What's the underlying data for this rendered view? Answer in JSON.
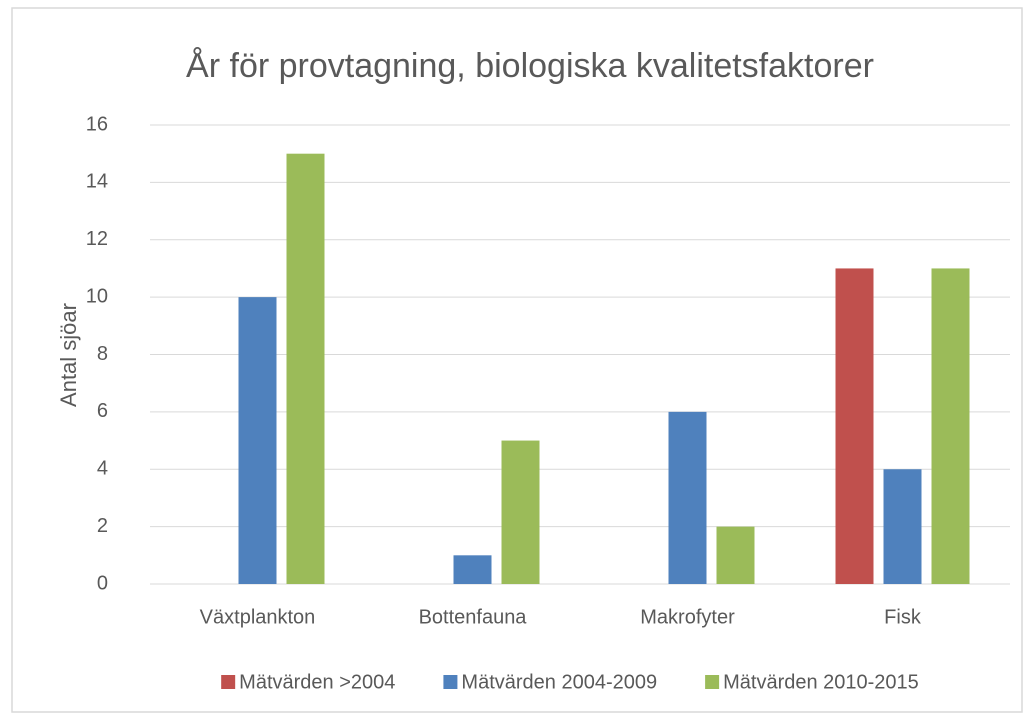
{
  "chart_data": {
    "type": "bar",
    "title": "År för provtagning, biologiska kvalitetsfaktorer",
    "y_label": "Antal sjöar",
    "categories": [
      "Växtplankton",
      "Bottenfauna",
      "Makrofyter",
      "Fisk"
    ],
    "series": [
      {
        "name": "Mätvärden >2004",
        "color": "#c0504d",
        "values": [
          0,
          0,
          0,
          11
        ]
      },
      {
        "name": "Mätvärden 2004-2009",
        "color": "#4f81bd",
        "values": [
          10,
          1,
          6,
          4
        ]
      },
      {
        "name": "Mätvärden 2010-2015",
        "color": "#9bbb59",
        "values": [
          15,
          5,
          2,
          11
        ]
      }
    ],
    "ylim": [
      0,
      16
    ],
    "yticks": [
      0,
      2,
      4,
      6,
      8,
      10,
      12,
      14,
      16
    ],
    "grid": true,
    "legend": "bottom"
  }
}
